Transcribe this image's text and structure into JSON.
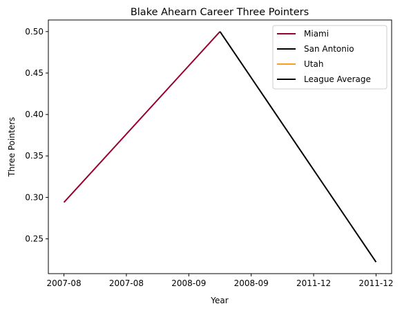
{
  "chart_data": {
    "type": "line",
    "title": "Blake Ahearn Career Three Pointers",
    "xlabel": "Year",
    "ylabel": "Three Pointers",
    "categories": [
      "2007-08",
      "2007-08",
      "2008-09",
      "2008-09",
      "2011-12",
      "2011-12"
    ],
    "ylim": [
      0.208,
      0.514
    ],
    "yticks": [
      0.25,
      0.3,
      0.35,
      0.4,
      0.45,
      0.5
    ],
    "ytick_labels": [
      "0.25",
      "0.30",
      "0.35",
      "0.40",
      "0.45",
      "0.50"
    ],
    "series": [
      {
        "name": "Miami",
        "color": "#98002e",
        "points": [
          [
            0,
            0.294
          ],
          [
            2.5,
            0.5
          ]
        ]
      },
      {
        "name": "San Antonio",
        "color": "#000000",
        "points": [
          [
            2.5,
            0.5
          ],
          [
            5,
            0.222
          ]
        ]
      },
      {
        "name": "Utah",
        "color": "#f9a01b",
        "points": []
      },
      {
        "name": "League Average",
        "color": "#000000",
        "points": []
      }
    ],
    "legend_position": "top-right",
    "grid": false
  }
}
